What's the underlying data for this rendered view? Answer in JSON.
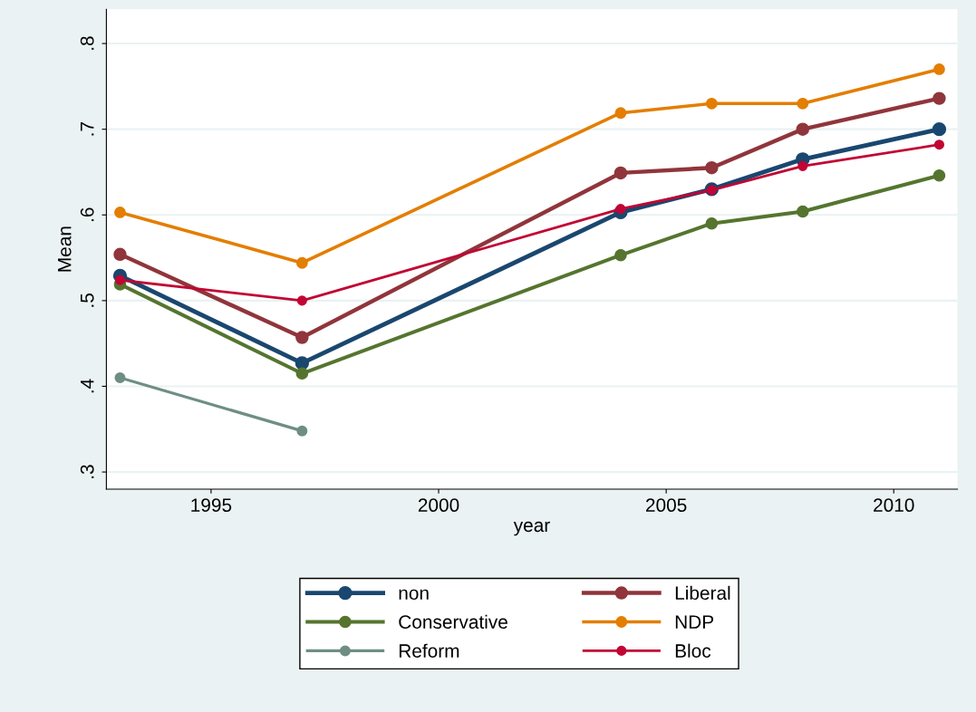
{
  "chart_data": {
    "type": "line",
    "xlabel": "year",
    "ylabel": "Mean",
    "x": [
      1993,
      1997,
      2004,
      2006,
      2008,
      2011
    ],
    "xlim": [
      1992.7,
      2011.4
    ],
    "xticks": [
      1995,
      2000,
      2005,
      2010
    ],
    "ylim": [
      0.28,
      0.84
    ],
    "yticks": [
      {
        "value": 0.3,
        "label": ".3"
      },
      {
        "value": 0.4,
        "label": ".4"
      },
      {
        "value": 0.5,
        "label": ".5"
      },
      {
        "value": 0.6,
        "label": ".6"
      },
      {
        "value": 0.7,
        "label": ".7"
      },
      {
        "value": 0.8,
        "label": ".8"
      }
    ],
    "grid": "y",
    "legend": "bottom",
    "marker": "circle",
    "line_style": "solid",
    "series": [
      {
        "name": "non",
        "color": "#1a476f",
        "values": [
          0.529,
          0.427,
          0.603,
          0.63,
          0.665,
          0.7
        ]
      },
      {
        "name": "Liberal",
        "color": "#90353b",
        "values": [
          0.554,
          0.457,
          0.649,
          0.655,
          0.7,
          0.736
        ]
      },
      {
        "name": "Conservative",
        "color": "#55752f",
        "values": [
          0.519,
          0.415,
          0.553,
          0.59,
          0.604,
          0.646
        ]
      },
      {
        "name": "NDP",
        "color": "#e37e00",
        "values": [
          0.603,
          0.544,
          0.719,
          0.73,
          0.73,
          0.77
        ]
      },
      {
        "name": "Reform",
        "color": "#6e8e84",
        "values": [
          0.41,
          0.348,
          null,
          null,
          null,
          null
        ]
      },
      {
        "name": "Bloc",
        "color": "#c10534",
        "values": [
          0.524,
          0.5,
          0.607,
          0.629,
          0.657,
          0.682
        ]
      }
    ]
  }
}
